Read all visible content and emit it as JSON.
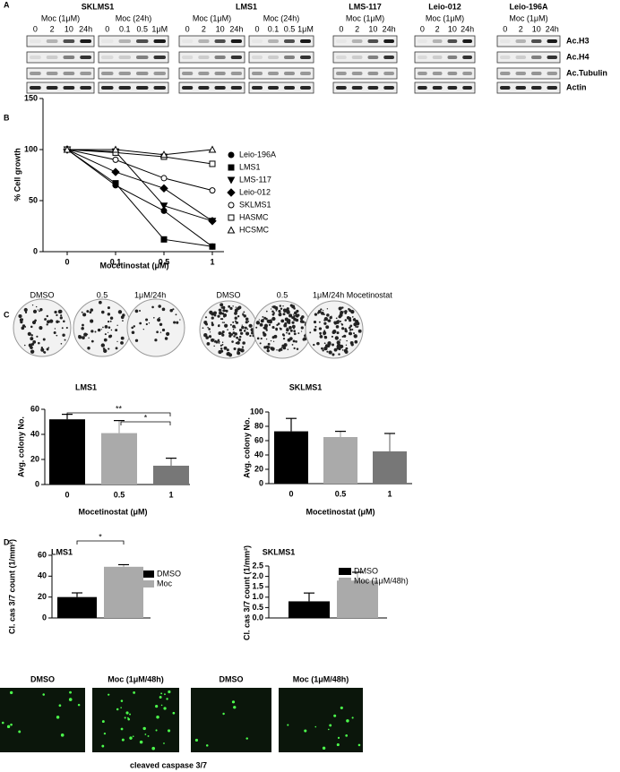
{
  "panel_labels": [
    "A",
    "B",
    "C",
    "D"
  ],
  "blots": {
    "cell_lines": [
      {
        "name": "SKLMS1",
        "groups": [
          {
            "treatment": "Moc (1μM)",
            "lanes": [
              "0",
              "2",
              "10",
              "24h"
            ]
          },
          {
            "treatment": "Moc (24h)",
            "lanes": [
              "0",
              "0.1",
              "0.5",
              "1μM"
            ]
          }
        ]
      },
      {
        "name": "LMS1",
        "groups": [
          {
            "treatment": "Moc (1μM)",
            "lanes": [
              "0",
              "2",
              "10",
              "24h"
            ]
          },
          {
            "treatment": "Moc (24h)",
            "lanes": [
              "0",
              "0.1",
              "0.5",
              "1μM"
            ]
          }
        ]
      },
      {
        "name": "LMS-117",
        "groups": [
          {
            "treatment": "Moc (1μM)",
            "lanes": [
              "0",
              "2",
              "10",
              "24h"
            ]
          }
        ]
      },
      {
        "name": "Leio-012",
        "groups": [
          {
            "treatment": "Moc (1μM)",
            "lanes": [
              "0",
              "2",
              "10",
              "24h"
            ]
          }
        ]
      },
      {
        "name": "Leio-196A",
        "groups": [
          {
            "treatment": "Moc (1μM)",
            "lanes": [
              "0",
              "2",
              "10",
              "24h"
            ]
          }
        ]
      }
    ],
    "proteins": [
      "Ac.H3",
      "Ac.H4",
      "Ac.Tubulin",
      "Actin"
    ]
  },
  "colony_images": {
    "labels": [
      [
        "DMSO",
        "0.5",
        "1μM/24h"
      ],
      [
        "DMSO",
        "0.5",
        "1μM/24h Mocetinostat"
      ]
    ]
  },
  "caspase_images": {
    "labels": [
      "DMSO",
      "Moc (1μM/48h)",
      "DMSO",
      "Moc (1μM/48h)"
    ],
    "caption": "cleaved caspase 3/7"
  },
  "chart_data": [
    {
      "type": "line",
      "x_label": "Mocetinostat (μM)",
      "y_label": "% Cell growth",
      "categories": [
        "0",
        "0.1",
        "0.5",
        "1"
      ],
      "ylim": [
        0,
        150
      ],
      "yticks": [
        0,
        50,
        100,
        150
      ],
      "series": [
        {
          "name": "Leio-196A",
          "color": "#000000",
          "marker": "filled-circle",
          "values": [
            100,
            65,
            40,
            5
          ]
        },
        {
          "name": "LMS1",
          "color": "#000000",
          "marker": "filled-square",
          "values": [
            100,
            67,
            12,
            5
          ]
        },
        {
          "name": "LMS-117",
          "color": "#000000",
          "marker": "filled-triangle-down",
          "values": [
            100,
            98,
            45,
            30
          ]
        },
        {
          "name": "Leio-012",
          "color": "#000000",
          "marker": "filled-diamond",
          "values": [
            100,
            78,
            62,
            30
          ]
        },
        {
          "name": "SKLMS1",
          "color": "#000000",
          "marker": "open-circle",
          "values": [
            100,
            90,
            72,
            60
          ]
        },
        {
          "name": "HASMC",
          "color": "#000000",
          "marker": "open-square",
          "values": [
            100,
            97,
            93,
            86
          ]
        },
        {
          "name": "HCSMC",
          "color": "#000000",
          "marker": "open-triangle",
          "values": [
            100,
            100,
            95,
            100
          ]
        }
      ]
    },
    {
      "type": "bar",
      "title": "LMS1",
      "x_label": "Mocetinostat (μM)",
      "y_label": "Avg. colony No.",
      "categories": [
        "0",
        "0.5",
        "1"
      ],
      "values": [
        52,
        41,
        15
      ],
      "errors": [
        4,
        10,
        6
      ],
      "colors": [
        "#000000",
        "#aaaaaa",
        "#777777"
      ],
      "ylim": [
        0,
        60
      ],
      "yticks": [
        0,
        20,
        40,
        60
      ],
      "annotations": [
        "**",
        "*"
      ]
    },
    {
      "type": "bar",
      "title": "SKLMS1",
      "x_label": "Mocetinostat (μM)",
      "y_label": "Avg. colony No.",
      "categories": [
        "0",
        "0.5",
        "1"
      ],
      "values": [
        73,
        65,
        45
      ],
      "errors": [
        18,
        8,
        25
      ],
      "colors": [
        "#000000",
        "#aaaaaa",
        "#777777"
      ],
      "ylim": [
        0,
        100
      ],
      "yticks": [
        0,
        20,
        40,
        60,
        80,
        100
      ]
    },
    {
      "type": "bar",
      "title": "LMS1",
      "y_label": "Cl. cas 3/7 count (1/mm²)",
      "categories": [
        null
      ],
      "ylim": [
        0,
        60
      ],
      "yticks": [
        0,
        20,
        40,
        60
      ],
      "annotations": [
        "*"
      ],
      "series": [
        {
          "name": "DMSO",
          "color": "#000000",
          "values": [
            20
          ],
          "errors": [
            4
          ]
        },
        {
          "name": "Moc",
          "color": "#aaaaaa",
          "values": [
            49
          ],
          "errors": [
            2
          ]
        }
      ]
    },
    {
      "type": "bar",
      "title": "SKLMS1",
      "y_label": "Cl. cas 3/7 count (1/mm²)",
      "categories": [
        null
      ],
      "ylim": [
        0,
        2.5
      ],
      "yticks": [
        {
          "value": 0,
          "label": "0.0"
        },
        0.5,
        {
          "value": 1,
          "label": "1.0"
        },
        1.5,
        {
          "value": 2,
          "label": "2.0"
        },
        2.5
      ],
      "series": [
        {
          "name": "DMSO",
          "color": "#000000",
          "values": [
            0.8
          ],
          "errors": [
            0.4
          ]
        },
        {
          "name": "Moc (1μM/48h)",
          "color": "#aaaaaa",
          "values": [
            1.8
          ],
          "errors": [
            0.4
          ]
        }
      ]
    }
  ]
}
